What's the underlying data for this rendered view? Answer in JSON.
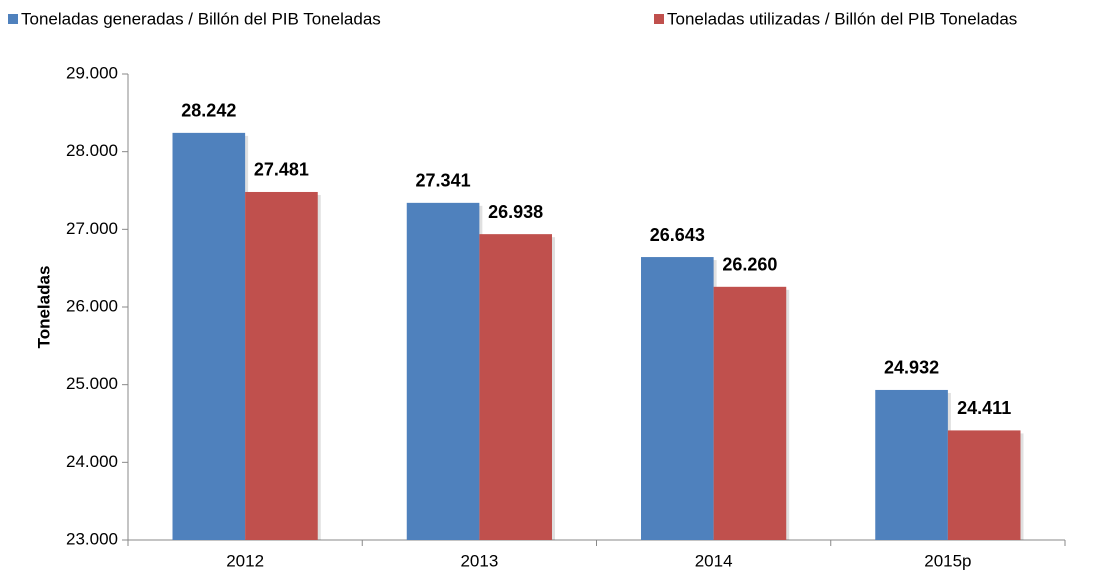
{
  "chart_data": {
    "type": "bar",
    "categories": [
      "2012",
      "2013",
      "2014",
      "2015p"
    ],
    "series": [
      {
        "name": "Toneladas generadas / Billón del PIB Toneladas",
        "color": "#4f81bd",
        "values": [
          28242,
          27341,
          26643,
          24932
        ],
        "value_labels": [
          "28.242",
          "27.341",
          "26.643",
          "24.932"
        ]
      },
      {
        "name": "Toneladas utilizadas / Billón del PIB Toneladas",
        "color": "#c0504d",
        "values": [
          27481,
          26938,
          26260,
          24411
        ],
        "value_labels": [
          "27.481",
          "26.938",
          "26.260",
          "24.411"
        ]
      }
    ],
    "ylabel": "Toneladas",
    "ylim": [
      23000,
      29000
    ],
    "yticks": [
      {
        "value": 23000,
        "label": "23.000"
      },
      {
        "value": 24000,
        "label": "24.000"
      },
      {
        "value": 25000,
        "label": "25.000"
      },
      {
        "value": 26000,
        "label": "26.000"
      },
      {
        "value": 27000,
        "label": "27.000"
      },
      {
        "value": 28000,
        "label": "28.000"
      },
      {
        "value": 29000,
        "label": "29.000"
      }
    ],
    "grid": false,
    "legend": "top"
  }
}
